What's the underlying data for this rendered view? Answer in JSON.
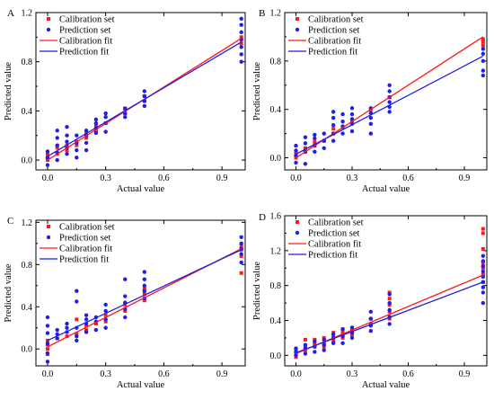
{
  "colors": {
    "calibration": "#ff1a1a",
    "prediction": "#1f1fe6",
    "axis": "#000000"
  },
  "chart_data": [
    {
      "panel": "A",
      "type": "scatter",
      "xlabel": "Actual value",
      "ylabel": "Predicted value",
      "xlim": [
        -0.06,
        1.02
      ],
      "ylim": [
        -0.08,
        1.2
      ],
      "xticks": [
        {
          "v": 0.0,
          "label": "0.0"
        },
        {
          "v": 0.3,
          "label": "0.3"
        },
        {
          "v": 0.6,
          "label": "0.6"
        },
        {
          "v": 0.9,
          "label": "0.9"
        }
      ],
      "yticks": [
        {
          "v": 0.0,
          "label": "0.0"
        },
        {
          "v": 0.4,
          "label": "0.4"
        },
        {
          "v": 0.8,
          "label": "0.8"
        },
        {
          "v": 1.2,
          "label": "1.2"
        }
      ],
      "legend": [
        "Calibration set",
        "Prediction set",
        "Calibration fit",
        "Prediction fit"
      ],
      "legend_position": "top-left",
      "calibration_points": [
        [
          0,
          0.0
        ],
        [
          0,
          0.02
        ],
        [
          0,
          0.05
        ],
        [
          0.05,
          0.05
        ],
        [
          0.05,
          0.1
        ],
        [
          0.1,
          0.08
        ],
        [
          0.1,
          0.12
        ],
        [
          0.15,
          0.12
        ],
        [
          0.15,
          0.15
        ],
        [
          0.2,
          0.18
        ],
        [
          0.2,
          0.22
        ],
        [
          0.25,
          0.24
        ],
        [
          0.25,
          0.28
        ],
        [
          0.3,
          0.3
        ],
        [
          0.4,
          0.38
        ],
        [
          0.4,
          0.42
        ],
        [
          0.5,
          0.48
        ],
        [
          0.5,
          0.52
        ],
        [
          1,
          0.95
        ],
        [
          1,
          1.0
        ]
      ],
      "prediction_points": [
        [
          0,
          -0.04
        ],
        [
          0,
          0.02
        ],
        [
          0,
          0.07
        ],
        [
          0.05,
          0.0
        ],
        [
          0.05,
          0.06
        ],
        [
          0.05,
          0.12
        ],
        [
          0.05,
          0.18
        ],
        [
          0.05,
          0.24
        ],
        [
          0.1,
          0.05
        ],
        [
          0.1,
          0.1
        ],
        [
          0.1,
          0.15
        ],
        [
          0.1,
          0.2
        ],
        [
          0.1,
          0.27
        ],
        [
          0.15,
          0.02
        ],
        [
          0.15,
          0.08
        ],
        [
          0.15,
          0.14
        ],
        [
          0.15,
          0.2
        ],
        [
          0.2,
          0.08
        ],
        [
          0.2,
          0.14
        ],
        [
          0.2,
          0.2
        ],
        [
          0.2,
          0.24
        ],
        [
          0.25,
          0.22
        ],
        [
          0.25,
          0.26
        ],
        [
          0.25,
          0.3
        ],
        [
          0.25,
          0.33
        ],
        [
          0.3,
          0.23
        ],
        [
          0.3,
          0.3
        ],
        [
          0.3,
          0.35
        ],
        [
          0.3,
          0.38
        ],
        [
          0.4,
          0.35
        ],
        [
          0.4,
          0.38
        ],
        [
          0.4,
          0.42
        ],
        [
          0.5,
          0.44
        ],
        [
          0.5,
          0.48
        ],
        [
          0.5,
          0.52
        ],
        [
          0.5,
          0.56
        ],
        [
          1,
          0.8
        ],
        [
          1,
          0.86
        ],
        [
          1,
          0.92
        ],
        [
          1,
          0.98
        ],
        [
          1,
          1.04
        ],
        [
          1,
          1.1
        ],
        [
          1,
          1.15
        ]
      ],
      "calibration_fit": [
        [
          0,
          0.0
        ],
        [
          1,
          0.99
        ]
      ],
      "prediction_fit": [
        [
          0,
          0.03
        ],
        [
          1,
          0.96
        ]
      ]
    },
    {
      "panel": "B",
      "type": "scatter",
      "xlabel": "Actual value",
      "ylabel": "Predicted value",
      "xlim": [
        -0.06,
        1.02
      ],
      "ylim": [
        -0.1,
        1.2
      ],
      "xticks": [
        {
          "v": 0.0,
          "label": "0.0"
        },
        {
          "v": 0.3,
          "label": "0.3"
        },
        {
          "v": 0.6,
          "label": "0.6"
        },
        {
          "v": 0.9,
          "label": "0.9"
        }
      ],
      "yticks": [
        {
          "v": 0.0,
          "label": "0.0"
        },
        {
          "v": 0.4,
          "label": "0.4"
        },
        {
          "v": 0.8,
          "label": "0.8"
        },
        {
          "v": 1.2,
          "label": "1.2"
        }
      ],
      "legend": [
        "Calibration set",
        "Prediction set",
        "Calibration fit",
        "Prediction fit"
      ],
      "legend_position": "top-left",
      "calibration_points": [
        [
          0,
          0.0
        ],
        [
          0,
          0.04
        ],
        [
          0.05,
          0.05
        ],
        [
          0.05,
          0.08
        ],
        [
          0.1,
          0.1
        ],
        [
          0.1,
          0.13
        ],
        [
          0.15,
          0.14
        ],
        [
          0.2,
          0.2
        ],
        [
          0.2,
          0.24
        ],
        [
          0.25,
          0.25
        ],
        [
          0.3,
          0.3
        ],
        [
          0.4,
          0.4
        ],
        [
          0.5,
          0.5
        ],
        [
          1,
          0.98
        ],
        [
          1,
          0.96
        ],
        [
          1,
          0.93
        ]
      ],
      "prediction_points": [
        [
          0,
          -0.04
        ],
        [
          0,
          0.02
        ],
        [
          0,
          0.06
        ],
        [
          0,
          0.1
        ],
        [
          0.05,
          -0.05
        ],
        [
          0.05,
          0.05
        ],
        [
          0.05,
          0.12
        ],
        [
          0.05,
          0.17
        ],
        [
          0.1,
          0.05
        ],
        [
          0.1,
          0.1
        ],
        [
          0.1,
          0.16
        ],
        [
          0.1,
          0.19
        ],
        [
          0.15,
          0.08
        ],
        [
          0.15,
          0.14
        ],
        [
          0.15,
          0.2
        ],
        [
          0.2,
          0.14
        ],
        [
          0.2,
          0.2
        ],
        [
          0.2,
          0.27
        ],
        [
          0.2,
          0.33
        ],
        [
          0.2,
          0.38
        ],
        [
          0.25,
          0.2
        ],
        [
          0.25,
          0.26
        ],
        [
          0.25,
          0.3
        ],
        [
          0.25,
          0.36
        ],
        [
          0.3,
          0.22
        ],
        [
          0.3,
          0.28
        ],
        [
          0.3,
          0.32
        ],
        [
          0.3,
          0.36
        ],
        [
          0.3,
          0.41
        ],
        [
          0.4,
          0.2
        ],
        [
          0.4,
          0.28
        ],
        [
          0.4,
          0.33
        ],
        [
          0.4,
          0.37
        ],
        [
          0.4,
          0.41
        ],
        [
          0.5,
          0.38
        ],
        [
          0.5,
          0.42
        ],
        [
          0.5,
          0.46
        ],
        [
          0.5,
          0.5
        ],
        [
          0.5,
          0.55
        ],
        [
          0.5,
          0.6
        ],
        [
          1,
          0.68
        ],
        [
          1,
          0.72
        ],
        [
          1,
          0.8
        ],
        [
          1,
          0.86
        ],
        [
          1,
          0.9
        ]
      ],
      "calibration_fit": [
        [
          0,
          0.0
        ],
        [
          1,
          1.0
        ]
      ],
      "prediction_fit": [
        [
          0,
          0.03
        ],
        [
          1,
          0.84
        ]
      ]
    },
    {
      "panel": "C",
      "type": "scatter",
      "xlabel": "Actual value",
      "ylabel": "Predicted value",
      "xlim": [
        -0.06,
        1.02
      ],
      "ylim": [
        -0.16,
        1.22
      ],
      "xticks": [
        {
          "v": 0.0,
          "label": "0.0"
        },
        {
          "v": 0.3,
          "label": "0.3"
        },
        {
          "v": 0.6,
          "label": "0.6"
        },
        {
          "v": 0.9,
          "label": "0.9"
        }
      ],
      "yticks": [
        {
          "v": 0.0,
          "label": "0.0"
        },
        {
          "v": 0.4,
          "label": "0.4"
        },
        {
          "v": 0.8,
          "label": "0.8"
        },
        {
          "v": 1.2,
          "label": "1.2"
        }
      ],
      "legend": [
        "Calibration set",
        "Prediction set",
        "Calibration fit",
        "Prediction fit"
      ],
      "legend_position": "top-left",
      "calibration_points": [
        [
          0,
          -0.05
        ],
        [
          0,
          0.0
        ],
        [
          0,
          0.04
        ],
        [
          0,
          0.08
        ],
        [
          0.05,
          0.1
        ],
        [
          0.1,
          0.12
        ],
        [
          0.15,
          0.14
        ],
        [
          0.15,
          0.28
        ],
        [
          0.2,
          0.18
        ],
        [
          0.2,
          0.22
        ],
        [
          0.25,
          0.24
        ],
        [
          0.3,
          0.26
        ],
        [
          0.3,
          0.32
        ],
        [
          0.4,
          0.36
        ],
        [
          0.4,
          0.42
        ],
        [
          0.5,
          0.46
        ],
        [
          0.5,
          0.52
        ],
        [
          0.5,
          0.57
        ],
        [
          1,
          0.72
        ],
        [
          1,
          0.88
        ],
        [
          1,
          0.94
        ],
        [
          1,
          0.98
        ]
      ],
      "prediction_points": [
        [
          0,
          -0.12
        ],
        [
          0,
          -0.04
        ],
        [
          0,
          0.05
        ],
        [
          0,
          0.15
        ],
        [
          0,
          0.22
        ],
        [
          0,
          0.3
        ],
        [
          0.05,
          0.1
        ],
        [
          0.05,
          0.14
        ],
        [
          0.05,
          0.18
        ],
        [
          0.1,
          0.16
        ],
        [
          0.1,
          0.2
        ],
        [
          0.1,
          0.24
        ],
        [
          0.15,
          0.08
        ],
        [
          0.15,
          0.12
        ],
        [
          0.15,
          0.2
        ],
        [
          0.15,
          0.45
        ],
        [
          0.15,
          0.55
        ],
        [
          0.2,
          0.16
        ],
        [
          0.2,
          0.24
        ],
        [
          0.2,
          0.28
        ],
        [
          0.2,
          0.32
        ],
        [
          0.25,
          0.18
        ],
        [
          0.25,
          0.26
        ],
        [
          0.25,
          0.3
        ],
        [
          0.3,
          0.2
        ],
        [
          0.3,
          0.28
        ],
        [
          0.3,
          0.36
        ],
        [
          0.3,
          0.42
        ],
        [
          0.4,
          0.3
        ],
        [
          0.4,
          0.38
        ],
        [
          0.4,
          0.44
        ],
        [
          0.4,
          0.5
        ],
        [
          0.4,
          0.66
        ],
        [
          0.5,
          0.48
        ],
        [
          0.5,
          0.55
        ],
        [
          0.5,
          0.6
        ],
        [
          0.5,
          0.66
        ],
        [
          0.5,
          0.73
        ],
        [
          1,
          0.82
        ],
        [
          1,
          0.9
        ],
        [
          1,
          0.95
        ],
        [
          1,
          1.0
        ],
        [
          1,
          1.06
        ]
      ],
      "calibration_fit": [
        [
          0,
          0.02
        ],
        [
          1,
          0.95
        ]
      ],
      "prediction_fit": [
        [
          0,
          0.08
        ],
        [
          1,
          0.94
        ]
      ]
    },
    {
      "panel": "D",
      "type": "scatter",
      "xlabel": "Actual value",
      "ylabel": "Predicted value",
      "xlim": [
        -0.06,
        1.02
      ],
      "ylim": [
        -0.12,
        1.6
      ],
      "xticks": [
        {
          "v": 0.0,
          "label": "0.0"
        },
        {
          "v": 0.3,
          "label": "0.3"
        },
        {
          "v": 0.6,
          "label": "0.6"
        },
        {
          "v": 0.9,
          "label": "0.9"
        }
      ],
      "yticks": [
        {
          "v": 0.0,
          "label": "0.0"
        },
        {
          "v": 0.4,
          "label": "0.4"
        },
        {
          "v": 0.8,
          "label": "0.8"
        },
        {
          "v": 1.2,
          "label": "1.2"
        },
        {
          "v": 1.6,
          "label": "1.6"
        }
      ],
      "legend": [
        "Calibration set",
        "Prediction set",
        "Calibration fit",
        "Prediction fit"
      ],
      "legend_position": "top-left",
      "calibration_points": [
        [
          0,
          -0.02
        ],
        [
          0,
          0.02
        ],
        [
          0,
          0.06
        ],
        [
          0.05,
          0.06
        ],
        [
          0.05,
          0.1
        ],
        [
          0.05,
          0.18
        ],
        [
          0.1,
          0.1
        ],
        [
          0.1,
          0.14
        ],
        [
          0.1,
          0.18
        ],
        [
          0.15,
          0.1
        ],
        [
          0.15,
          0.14
        ],
        [
          0.15,
          0.2
        ],
        [
          0.2,
          0.16
        ],
        [
          0.2,
          0.2
        ],
        [
          0.2,
          0.26
        ],
        [
          0.25,
          0.2
        ],
        [
          0.25,
          0.26
        ],
        [
          0.25,
          0.3
        ],
        [
          0.3,
          0.24
        ],
        [
          0.3,
          0.3
        ],
        [
          0.4,
          0.36
        ],
        [
          0.4,
          0.42
        ],
        [
          0.5,
          0.42
        ],
        [
          0.5,
          0.5
        ],
        [
          0.5,
          0.58
        ],
        [
          0.5,
          0.65
        ],
        [
          0.5,
          0.72
        ],
        [
          1,
          0.84
        ],
        [
          1,
          0.92
        ],
        [
          1,
          1.0
        ],
        [
          1,
          1.05
        ],
        [
          1,
          1.22
        ],
        [
          1,
          1.4
        ],
        [
          1,
          1.45
        ]
      ],
      "prediction_points": [
        [
          0,
          0.0
        ],
        [
          0,
          0.04
        ],
        [
          0,
          0.08
        ],
        [
          0.05,
          0.02
        ],
        [
          0.05,
          0.08
        ],
        [
          0.05,
          0.12
        ],
        [
          0.1,
          0.04
        ],
        [
          0.1,
          0.1
        ],
        [
          0.1,
          0.16
        ],
        [
          0.15,
          0.06
        ],
        [
          0.15,
          0.12
        ],
        [
          0.15,
          0.18
        ],
        [
          0.2,
          0.14
        ],
        [
          0.2,
          0.2
        ],
        [
          0.2,
          0.24
        ],
        [
          0.25,
          0.14
        ],
        [
          0.25,
          0.22
        ],
        [
          0.25,
          0.3
        ],
        [
          0.3,
          0.2
        ],
        [
          0.3,
          0.26
        ],
        [
          0.3,
          0.32
        ],
        [
          0.4,
          0.28
        ],
        [
          0.4,
          0.34
        ],
        [
          0.4,
          0.42
        ],
        [
          0.4,
          0.5
        ],
        [
          0.5,
          0.36
        ],
        [
          0.5,
          0.44
        ],
        [
          0.5,
          0.52
        ],
        [
          0.5,
          0.6
        ],
        [
          0.5,
          0.7
        ],
        [
          1,
          0.6
        ],
        [
          1,
          0.72
        ],
        [
          1,
          0.78
        ],
        [
          1,
          0.84
        ],
        [
          1,
          0.9
        ],
        [
          1,
          0.96
        ],
        [
          1,
          1.02
        ],
        [
          1,
          1.08
        ],
        [
          1,
          1.14
        ]
      ],
      "calibration_fit": [
        [
          0,
          0.02
        ],
        [
          1,
          0.92
        ]
      ],
      "prediction_fit": [
        [
          0,
          0.03
        ],
        [
          1,
          0.84
        ]
      ]
    }
  ]
}
